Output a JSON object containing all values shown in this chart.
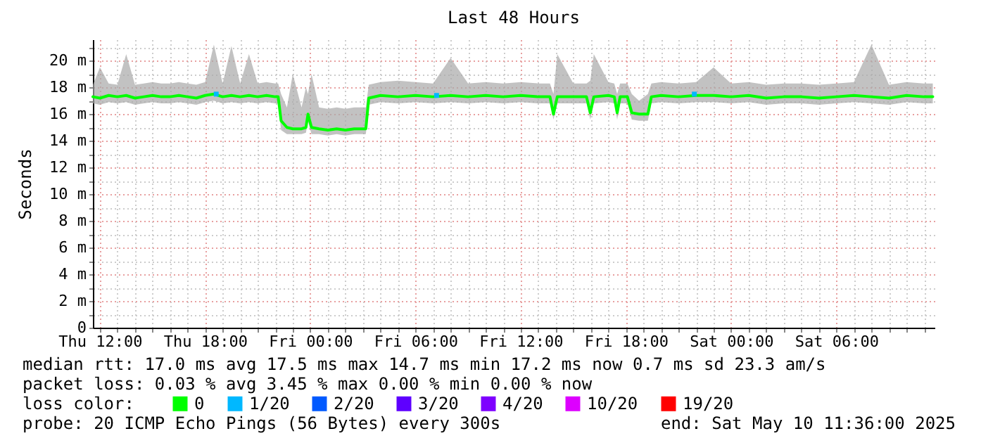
{
  "chart_data": {
    "type": "line",
    "title": "Last 48 Hours",
    "ylabel": "Seconds",
    "legend_title": "loss color:",
    "legend": "bottom",
    "grid": true,
    "xlim": [
      "2025-05-08T11:36",
      "2025-05-10T11:36"
    ],
    "xticks": [
      {
        "value": "2025-05-08T12:00",
        "label": "Thu 12:00"
      },
      {
        "value": "2025-05-08T13:00",
        "label": null
      },
      {
        "value": "2025-05-08T14:00",
        "label": null
      },
      {
        "value": "2025-05-08T15:00",
        "label": null
      },
      {
        "value": "2025-05-08T16:00",
        "label": null
      },
      {
        "value": "2025-05-08T17:00",
        "label": null
      },
      {
        "value": "2025-05-08T18:00",
        "label": "Thu 18:00"
      },
      {
        "value": "2025-05-08T19:00",
        "label": null
      },
      {
        "value": "2025-05-08T20:00",
        "label": null
      },
      {
        "value": "2025-05-08T21:00",
        "label": null
      },
      {
        "value": "2025-05-08T22:00",
        "label": null
      },
      {
        "value": "2025-05-08T23:00",
        "label": null
      },
      {
        "value": "2025-05-09T00:00",
        "label": "Fri 00:00"
      },
      {
        "value": "2025-05-09T01:00",
        "label": null
      },
      {
        "value": "2025-05-09T02:00",
        "label": null
      },
      {
        "value": "2025-05-09T03:00",
        "label": null
      },
      {
        "value": "2025-05-09T04:00",
        "label": null
      },
      {
        "value": "2025-05-09T05:00",
        "label": null
      },
      {
        "value": "2025-05-09T06:00",
        "label": "Fri 06:00"
      },
      {
        "value": "2025-05-09T07:00",
        "label": null
      },
      {
        "value": "2025-05-09T08:00",
        "label": null
      },
      {
        "value": "2025-05-09T09:00",
        "label": null
      },
      {
        "value": "2025-05-09T10:00",
        "label": null
      },
      {
        "value": "2025-05-09T11:00",
        "label": null
      },
      {
        "value": "2025-05-09T12:00",
        "label": "Fri 12:00"
      },
      {
        "value": "2025-05-09T13:00",
        "label": null
      },
      {
        "value": "2025-05-09T14:00",
        "label": null
      },
      {
        "value": "2025-05-09T15:00",
        "label": null
      },
      {
        "value": "2025-05-09T16:00",
        "label": null
      },
      {
        "value": "2025-05-09T17:00",
        "label": null
      },
      {
        "value": "2025-05-09T18:00",
        "label": "Fri 18:00"
      },
      {
        "value": "2025-05-09T19:00",
        "label": null
      },
      {
        "value": "2025-05-09T20:00",
        "label": null
      },
      {
        "value": "2025-05-09T21:00",
        "label": null
      },
      {
        "value": "2025-05-09T22:00",
        "label": null
      },
      {
        "value": "2025-05-09T23:00",
        "label": null
      },
      {
        "value": "2025-05-10T00:00",
        "label": "Sat 00:00"
      },
      {
        "value": "2025-05-10T01:00",
        "label": null
      },
      {
        "value": "2025-05-10T02:00",
        "label": null
      },
      {
        "value": "2025-05-10T03:00",
        "label": null
      },
      {
        "value": "2025-05-10T04:00",
        "label": null
      },
      {
        "value": "2025-05-10T05:00",
        "label": null
      },
      {
        "value": "2025-05-10T06:00",
        "label": "Sat 06:00"
      },
      {
        "value": "2025-05-10T07:00",
        "label": null
      },
      {
        "value": "2025-05-10T08:00",
        "label": null
      },
      {
        "value": "2025-05-10T09:00",
        "label": null
      },
      {
        "value": "2025-05-10T10:00",
        "label": null
      },
      {
        "value": "2025-05-10T11:00",
        "label": null
      }
    ],
    "ylim": [
      0,
      21.6
    ],
    "yticks": [
      {
        "value": 0,
        "label": "0"
      },
      {
        "value": 1,
        "label": null
      },
      {
        "value": 2,
        "label": "2 m"
      },
      {
        "value": 3,
        "label": null
      },
      {
        "value": 4,
        "label": "4 m"
      },
      {
        "value": 5,
        "label": null
      },
      {
        "value": 6,
        "label": "6 m"
      },
      {
        "value": 7,
        "label": null
      },
      {
        "value": 8,
        "label": "8 m"
      },
      {
        "value": 9,
        "label": null
      },
      {
        "value": 10,
        "label": "10 m"
      },
      {
        "value": 11,
        "label": null
      },
      {
        "value": 12,
        "label": "12 m"
      },
      {
        "value": 13,
        "label": null
      },
      {
        "value": 14,
        "label": "14 m"
      },
      {
        "value": 15,
        "label": null
      },
      {
        "value": 16,
        "label": "16 m"
      },
      {
        "value": 17,
        "label": null
      },
      {
        "value": 18,
        "label": "18 m"
      },
      {
        "value": 19,
        "label": null
      },
      {
        "value": 20,
        "label": "20 m"
      },
      {
        "value": 21,
        "label": null
      }
    ],
    "x": [
      "2025-05-08T11:36",
      "2025-05-08T12:00",
      "2025-05-08T12:30",
      "2025-05-08T13:00",
      "2025-05-08T13:30",
      "2025-05-08T14:00",
      "2025-05-08T14:30",
      "2025-05-08T15:00",
      "2025-05-08T15:30",
      "2025-05-08T16:00",
      "2025-05-08T16:30",
      "2025-05-08T17:00",
      "2025-05-08T17:30",
      "2025-05-08T18:00",
      "2025-05-08T18:30",
      "2025-05-08T19:00",
      "2025-05-08T19:30",
      "2025-05-08T20:00",
      "2025-05-08T20:30",
      "2025-05-08T21:00",
      "2025-05-08T21:30",
      "2025-05-08T22:00",
      "2025-05-08T22:10",
      "2025-05-08T22:20",
      "2025-05-08T22:40",
      "2025-05-08T23:00",
      "2025-05-08T23:30",
      "2025-05-08T23:45",
      "2025-05-08T23:52",
      "2025-05-09T00:04",
      "2025-05-09T00:30",
      "2025-05-09T01:00",
      "2025-05-09T01:30",
      "2025-05-09T02:00",
      "2025-05-09T02:30",
      "2025-05-09T03:00",
      "2025-05-09T03:10",
      "2025-05-09T03:20",
      "2025-05-09T04:00",
      "2025-05-09T05:00",
      "2025-05-09T06:00",
      "2025-05-09T07:00",
      "2025-05-09T08:00",
      "2025-05-09T09:00",
      "2025-05-09T10:00",
      "2025-05-09T11:00",
      "2025-05-09T12:00",
      "2025-05-09T13:00",
      "2025-05-09T13:40",
      "2025-05-09T13:52",
      "2025-05-09T14:05",
      "2025-05-09T15:00",
      "2025-05-09T15:45",
      "2025-05-09T15:58",
      "2025-05-09T16:10",
      "2025-05-09T17:00",
      "2025-05-09T17:20",
      "2025-05-09T17:30",
      "2025-05-09T17:40",
      "2025-05-09T18:05",
      "2025-05-09T18:20",
      "2025-05-09T18:45",
      "2025-05-09T19:15",
      "2025-05-09T19:27",
      "2025-05-09T20:00",
      "2025-05-09T21:00",
      "2025-05-09T22:00",
      "2025-05-09T23:00",
      "2025-05-10T00:00",
      "2025-05-10T01:00",
      "2025-05-10T02:00",
      "2025-05-10T03:00",
      "2025-05-10T04:00",
      "2025-05-10T05:00",
      "2025-05-10T06:00",
      "2025-05-10T07:00",
      "2025-05-10T08:00",
      "2025-05-10T09:00",
      "2025-05-10T10:00",
      "2025-05-10T11:00",
      "2025-05-10T11:30"
    ],
    "series": [
      {
        "name": "0",
        "color": "#00ff00",
        "values": [
          17.3,
          17.2,
          17.4,
          17.3,
          17.4,
          17.2,
          17.3,
          17.4,
          17.3,
          17.3,
          17.4,
          17.3,
          17.2,
          17.4,
          17.5,
          17.3,
          17.4,
          17.3,
          17.4,
          17.3,
          17.4,
          17.3,
          17.3,
          15.5,
          15.0,
          14.9,
          14.9,
          15.0,
          16.0,
          15.0,
          14.9,
          14.8,
          14.9,
          14.8,
          14.9,
          14.9,
          14.9,
          17.2,
          17.4,
          17.3,
          17.4,
          17.3,
          17.4,
          17.3,
          17.4,
          17.3,
          17.4,
          17.3,
          17.3,
          16.0,
          17.3,
          17.3,
          17.3,
          16.1,
          17.3,
          17.4,
          17.3,
          16.1,
          17.3,
          17.3,
          16.1,
          16.0,
          16.0,
          17.3,
          17.4,
          17.3,
          17.4,
          17.4,
          17.3,
          17.4,
          17.2,
          17.3,
          17.3,
          17.2,
          17.3,
          17.4,
          17.3,
          17.2,
          17.4,
          17.3,
          17.3
        ],
        "lower": [
          16.8,
          16.7,
          16.9,
          16.8,
          16.9,
          16.7,
          16.8,
          16.9,
          16.8,
          16.8,
          16.9,
          16.8,
          16.7,
          16.9,
          17.0,
          16.8,
          16.9,
          16.8,
          16.9,
          16.8,
          16.9,
          16.8,
          16.8,
          14.8,
          14.5,
          14.5,
          14.5,
          14.6,
          15.5,
          14.5,
          14.5,
          14.4,
          14.5,
          14.4,
          14.5,
          14.5,
          14.5,
          16.7,
          16.9,
          16.8,
          16.9,
          16.8,
          16.9,
          16.8,
          16.9,
          16.8,
          16.9,
          16.8,
          16.8,
          15.6,
          16.8,
          16.8,
          16.8,
          15.6,
          16.8,
          16.9,
          16.8,
          15.6,
          16.8,
          16.8,
          15.6,
          15.5,
          15.5,
          16.8,
          16.9,
          16.8,
          16.9,
          16.9,
          16.8,
          16.9,
          16.7,
          16.8,
          16.8,
          16.7,
          16.8,
          16.9,
          16.8,
          16.7,
          16.9,
          16.8,
          16.8
        ],
        "upper": [
          18.2,
          19.5,
          18.3,
          18.2,
          20.5,
          18.2,
          18.3,
          18.4,
          18.3,
          18.3,
          18.4,
          18.3,
          18.2,
          18.4,
          21.2,
          18.3,
          21.1,
          18.3,
          20.5,
          18.3,
          18.4,
          18.3,
          18.3,
          17.5,
          16.5,
          19.0,
          16.5,
          18.0,
          17.5,
          19.0,
          16.5,
          16.4,
          16.5,
          16.4,
          16.5,
          16.5,
          16.5,
          18.2,
          18.4,
          18.5,
          18.4,
          18.3,
          20.2,
          18.3,
          18.4,
          18.3,
          18.4,
          18.3,
          18.3,
          17.5,
          20.5,
          18.3,
          18.3,
          18.5,
          20.5,
          18.4,
          18.3,
          17.5,
          18.3,
          18.3,
          17.5,
          17.0,
          17.5,
          18.3,
          18.4,
          18.3,
          18.4,
          19.5,
          18.3,
          18.4,
          18.2,
          18.3,
          18.3,
          18.2,
          18.3,
          18.4,
          21.2,
          18.2,
          18.4,
          18.3,
          18.3
        ]
      },
      {
        "name": "1/20",
        "type": "scatter",
        "marker": "square",
        "color": "#00b8ff",
        "x": [
          "2025-05-08T18:38",
          "2025-05-09T07:12",
          "2025-05-09T21:54"
        ],
        "values": [
          17.5,
          17.4,
          17.5
        ]
      },
      {
        "name": "2/20",
        "color": "#0059ff",
        "values": [
          null,
          null,
          null,
          null,
          null,
          null,
          null,
          null,
          null,
          null,
          null,
          null,
          null,
          null,
          null,
          null,
          null,
          null,
          null,
          null,
          null,
          null,
          null,
          null,
          null,
          null,
          null,
          null,
          null,
          null,
          null,
          null,
          null,
          null,
          null,
          null,
          null,
          null,
          null,
          null,
          null,
          null,
          null,
          null,
          null,
          null,
          null,
          null,
          null,
          null,
          null,
          null,
          null,
          null,
          null,
          null,
          null,
          null,
          null,
          null,
          null,
          null,
          null,
          null,
          null,
          null,
          null,
          null,
          null,
          null,
          null,
          null,
          null,
          null,
          null,
          null,
          null,
          null,
          null,
          null,
          null
        ]
      },
      {
        "name": "3/20",
        "color": "#5e00ff",
        "values": [
          null,
          null,
          null,
          null,
          null,
          null,
          null,
          null,
          null,
          null,
          null,
          null,
          null,
          null,
          null,
          null,
          null,
          null,
          null,
          null,
          null,
          null,
          null,
          null,
          null,
          null,
          null,
          null,
          null,
          null,
          null,
          null,
          null,
          null,
          null,
          null,
          null,
          null,
          null,
          null,
          null,
          null,
          null,
          null,
          null,
          null,
          null,
          null,
          null,
          null,
          null,
          null,
          null,
          null,
          null,
          null,
          null,
          null,
          null,
          null,
          null,
          null,
          null,
          null,
          null,
          null,
          null,
          null,
          null,
          null,
          null,
          null,
          null,
          null,
          null,
          null,
          null,
          null,
          null,
          null,
          null
        ]
      },
      {
        "name": "4/20",
        "color": "#7e00ff",
        "values": [
          null,
          null,
          null,
          null,
          null,
          null,
          null,
          null,
          null,
          null,
          null,
          null,
          null,
          null,
          null,
          null,
          null,
          null,
          null,
          null,
          null,
          null,
          null,
          null,
          null,
          null,
          null,
          null,
          null,
          null,
          null,
          null,
          null,
          null,
          null,
          null,
          null,
          null,
          null,
          null,
          null,
          null,
          null,
          null,
          null,
          null,
          null,
          null,
          null,
          null,
          null,
          null,
          null,
          null,
          null,
          null,
          null,
          null,
          null,
          null,
          null,
          null,
          null,
          null,
          null,
          null,
          null,
          null,
          null,
          null,
          null,
          null,
          null,
          null,
          null,
          null,
          null,
          null,
          null,
          null,
          null
        ]
      },
      {
        "name": "10/20",
        "color": "#dd00ff",
        "values": [
          null,
          null,
          null,
          null,
          null,
          null,
          null,
          null,
          null,
          null,
          null,
          null,
          null,
          null,
          null,
          null,
          null,
          null,
          null,
          null,
          null,
          null,
          null,
          null,
          null,
          null,
          null,
          null,
          null,
          null,
          null,
          null,
          null,
          null,
          null,
          null,
          null,
          null,
          null,
          null,
          null,
          null,
          null,
          null,
          null,
          null,
          null,
          null,
          null,
          null,
          null,
          null,
          null,
          null,
          null,
          null,
          null,
          null,
          null,
          null,
          null,
          null,
          null,
          null,
          null,
          null,
          null,
          null,
          null,
          null,
          null,
          null,
          null,
          null,
          null,
          null,
          null,
          null,
          null,
          null,
          null
        ]
      },
      {
        "name": "19/20",
        "color": "#ff0000",
        "values": [
          null,
          null,
          null,
          null,
          null,
          null,
          null,
          null,
          null,
          null,
          null,
          null,
          null,
          null,
          null,
          null,
          null,
          null,
          null,
          null,
          null,
          null,
          null,
          null,
          null,
          null,
          null,
          null,
          null,
          null,
          null,
          null,
          null,
          null,
          null,
          null,
          null,
          null,
          null,
          null,
          null,
          null,
          null,
          null,
          null,
          null,
          null,
          null,
          null,
          null,
          null,
          null,
          null,
          null,
          null,
          null,
          null,
          null,
          null,
          null,
          null,
          null,
          null,
          null,
          null,
          null,
          null,
          null,
          null,
          null,
          null,
          null,
          null,
          null,
          null,
          null,
          null,
          null,
          null,
          null,
          null
        ]
      }
    ],
    "annotations": [
      "median rtt:  17.0 ms avg  17.5 ms max  14.7 ms min  17.2 ms now  0.7 ms sd  23.3   am/s",
      "packet loss: 0.03 % avg  3.45 % max  0.00 % min  0.00 % now",
      "probe:       20 ICMP Echo Pings (56 Bytes) every 300s",
      "end: Sat May 10 11:36:00 2025"
    ]
  }
}
